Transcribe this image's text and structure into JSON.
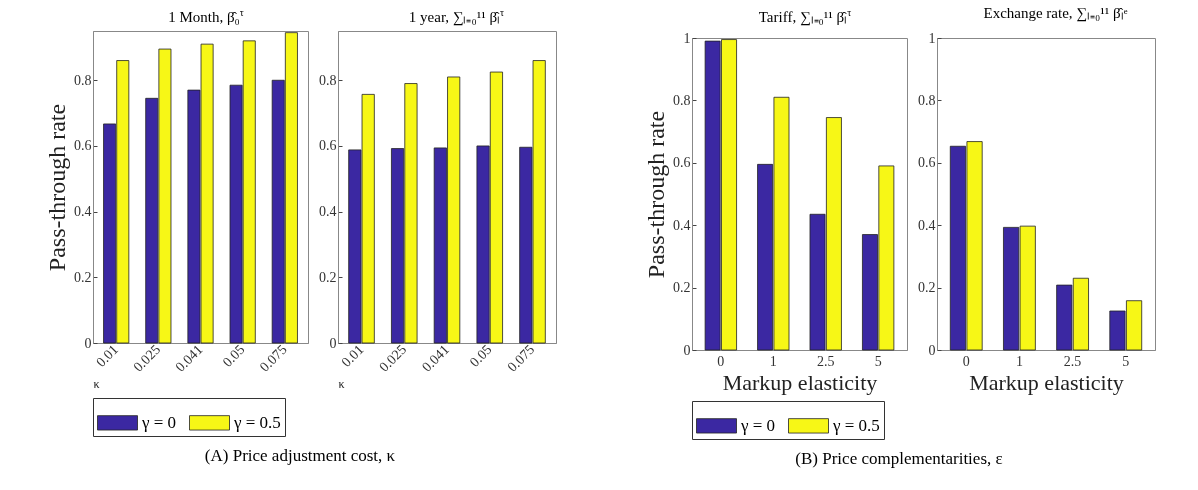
{
  "chart_data": [
    {
      "type": "bar",
      "title": "1 Month, β̂₀$^{τ}$",
      "xlabel": "κ",
      "ylabel": "Pass-through rate",
      "categories": [
        "0.01",
        "0.025",
        "0.041",
        "0.05",
        "0.075"
      ],
      "series": [
        {
          "name": "γ = 0",
          "color": "#3b28a2",
          "values": [
            0.667,
            0.745,
            0.77,
            0.785,
            0.8
          ]
        },
        {
          "name": "γ = 0.5",
          "color": "#f7f716",
          "values": [
            0.86,
            0.895,
            0.91,
            0.92,
            0.945
          ]
        }
      ],
      "ylim": [
        0,
        0.95
      ],
      "yticks": [
        0,
        0.2,
        0.4,
        0.6,
        0.8
      ],
      "legend": "bottom",
      "annotations": [
        "(A) Price adjustment cost, κ"
      ]
    },
    {
      "type": "bar",
      "title": "1 year, ∑ₗ₌₀¹¹ β̂ₗ$^{τ}$",
      "xlabel": "κ",
      "categories": [
        "0.01",
        "0.025",
        "0.041",
        "0.05",
        "0.075"
      ],
      "series": [
        {
          "color": "#3b28a2",
          "values": [
            0.588,
            0.592,
            0.594,
            0.6,
            0.596
          ]
        },
        {
          "color": "#f7f716",
          "values": [
            0.757,
            0.79,
            0.81,
            0.825,
            0.86
          ]
        }
      ],
      "ylim": [
        0,
        0.95
      ],
      "yticks": [
        0,
        0.2,
        0.4,
        0.6,
        0.8
      ]
    },
    {
      "type": "bar",
      "title": "Tariff, ∑ₗ₌₀¹¹ β̂ₗ$^{τ}$",
      "xlabel": "Markup elasticity",
      "ylabel": "Pass-through rate",
      "categories": [
        "0",
        "1",
        "2.5",
        "5"
      ],
      "series": [
        {
          "name": "γ = 0",
          "color": "#3b28a2",
          "values": [
            0.99,
            0.595,
            0.435,
            0.37
          ]
        },
        {
          "name": "γ = 0.5",
          "color": "#f7f716",
          "values": [
            0.995,
            0.81,
            0.745,
            0.59
          ]
        }
      ],
      "ylim": [
        0,
        1
      ],
      "yticks": [
        0,
        0.2,
        0.4,
        0.6,
        0.8,
        1
      ],
      "legend": "bottom",
      "annotations": [
        "(B) Price complementarities, ε"
      ]
    },
    {
      "type": "bar",
      "title": "Exchange rate, ∑ₗ₌₀¹¹ β̂ₗᵉ",
      "xlabel": "Markup elasticity",
      "categories": [
        "0",
        "1",
        "2.5",
        "5"
      ],
      "series": [
        {
          "color": "#3b28a2",
          "values": [
            0.653,
            0.393,
            0.208,
            0.125
          ]
        },
        {
          "color": "#f7f716",
          "values": [
            0.668,
            0.397,
            0.23,
            0.158
          ]
        }
      ],
      "ylim": [
        0,
        1
      ],
      "yticks": [
        0,
        0.2,
        0.4,
        0.6,
        0.8,
        1
      ]
    }
  ]
}
